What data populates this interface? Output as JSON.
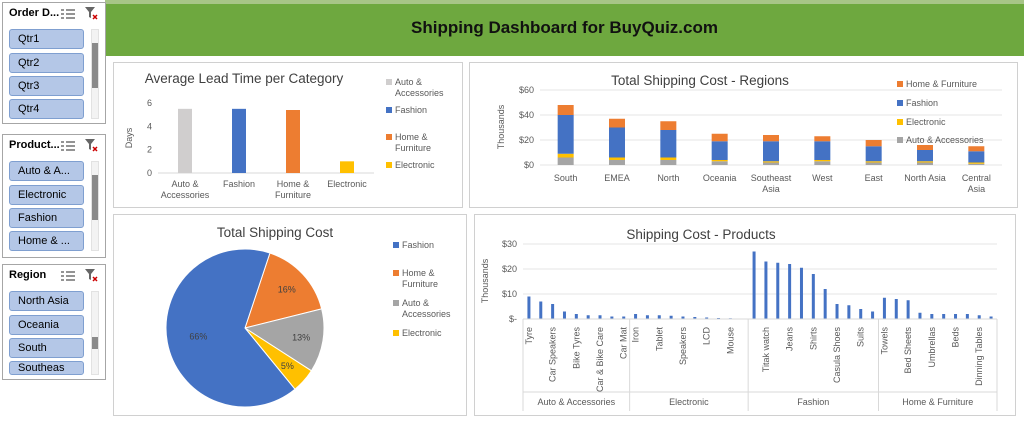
{
  "header": {
    "title": "Shipping Dashboard for BuyQuiz.com"
  },
  "slicers": {
    "order_date": {
      "title": "Order D...",
      "items": [
        "Qtr1",
        "Qtr2",
        "Qtr3",
        "Qtr4"
      ]
    },
    "product": {
      "title": "Product...",
      "items": [
        "Auto & A...",
        "Electronic",
        "Fashion",
        "Home & ..."
      ]
    },
    "region": {
      "title": "Region",
      "items": [
        "North Asia",
        "Oceania",
        "South",
        "Southeas"
      ]
    }
  },
  "colors": {
    "fashion": "#4472c4",
    "home": "#ed7d31",
    "auto": "#a5a5a5",
    "electronic": "#ffc000",
    "auto_light": "#d0cece",
    "banner": "#6ea83f"
  },
  "chart_data": [
    {
      "type": "bar",
      "title": "Average Lead Time per Category",
      "ylabel": "Days",
      "ylim": [
        0,
        6
      ],
      "yticks": [
        0,
        2,
        4,
        6
      ],
      "categories": [
        "Auto & Accessories",
        "Fashion",
        "Home & Furniture",
        "Electronic"
      ],
      "values": [
        5.5,
        5.5,
        5.4,
        1.0
      ],
      "legend": [
        "Auto & Accessories",
        "Fashion",
        "Home & Furniture",
        "Electronic"
      ],
      "legend_position": "right"
    },
    {
      "type": "bar",
      "stacked": true,
      "title": "Total Shipping Cost - Regions",
      "ylabel": "Thousands",
      "ylim": [
        0,
        60
      ],
      "ytick_labels": [
        "$0",
        "$20",
        "$40",
        "$60"
      ],
      "categories": [
        "South",
        "EMEA",
        "North",
        "Oceania",
        "Southeast Asia",
        "West",
        "East",
        "North Asia",
        "Central Asia"
      ],
      "series": [
        {
          "name": "Auto & Accessories",
          "values": [
            6,
            4,
            4,
            3,
            2,
            3,
            2,
            2,
            1
          ]
        },
        {
          "name": "Electronic",
          "values": [
            3,
            2,
            2,
            1,
            1,
            1,
            1,
            1,
            1
          ]
        },
        {
          "name": "Fashion",
          "values": [
            31,
            24,
            22,
            15,
            16,
            15,
            12,
            9,
            9
          ]
        },
        {
          "name": "Home & Furniture",
          "values": [
            8,
            7,
            7,
            6,
            5,
            4,
            5,
            4,
            4
          ]
        }
      ],
      "legend_position": "right"
    },
    {
      "type": "pie",
      "title": "Total Shipping Cost",
      "labels": [
        "Fashion",
        "Home & Furniture",
        "Auto & Accessories",
        "Electronic"
      ],
      "values": [
        66,
        16,
        13,
        5
      ],
      "data_labels": [
        "66%",
        "16%",
        "13%",
        "5%"
      ],
      "legend_position": "right"
    },
    {
      "type": "bar",
      "title": "Shipping Cost - Products",
      "ylabel": "Thousands",
      "ylim": [
        0,
        30
      ],
      "ytick_labels": [
        "$-",
        "$10",
        "$20",
        "$30"
      ],
      "groups": [
        {
          "name": "Auto & Accessories",
          "products": [
            [
              "Tyre",
              9
            ],
            [
              "",
              7
            ],
            [
              "Car Speakers",
              6
            ],
            [
              "",
              3
            ],
            [
              "Bike Tyres",
              2
            ],
            [
              "",
              1.5
            ],
            [
              "Car & Bike Care",
              1.5
            ],
            [
              "",
              1
            ],
            [
              "Car Mat",
              1
            ]
          ]
        },
        {
          "name": "Electronic",
          "products": [
            [
              "Iron",
              2
            ],
            [
              "",
              1.5
            ],
            [
              "Tablet",
              1.5
            ],
            [
              "",
              1.3
            ],
            [
              "Speakers",
              1
            ],
            [
              "",
              0.8
            ],
            [
              "LCD",
              0.6
            ],
            [
              "",
              0.4
            ],
            [
              "Mouse",
              0.3
            ],
            [
              "",
              0.2
            ]
          ]
        },
        {
          "name": "Fashion",
          "products": [
            [
              "",
              27
            ],
            [
              "Titak watch",
              23
            ],
            [
              "",
              22.5
            ],
            [
              "Jeans",
              22
            ],
            [
              "",
              20.5
            ],
            [
              "Shirts",
              18
            ],
            [
              "",
              12
            ],
            [
              "Casula Shoes",
              6
            ],
            [
              "",
              5.5
            ],
            [
              "Suits",
              4
            ],
            [
              "",
              3
            ]
          ]
        },
        {
          "name": "Home & Furniture",
          "products": [
            [
              "Towels",
              8.5
            ],
            [
              "",
              8
            ],
            [
              "Bed Sheets",
              7.5
            ],
            [
              "",
              2.5
            ],
            [
              "Umbrellas",
              2
            ],
            [
              "",
              2
            ],
            [
              "Beds",
              2
            ],
            [
              "",
              2
            ],
            [
              "Dinning Tables",
              1.5
            ],
            [
              "",
              1
            ]
          ]
        }
      ]
    }
  ]
}
